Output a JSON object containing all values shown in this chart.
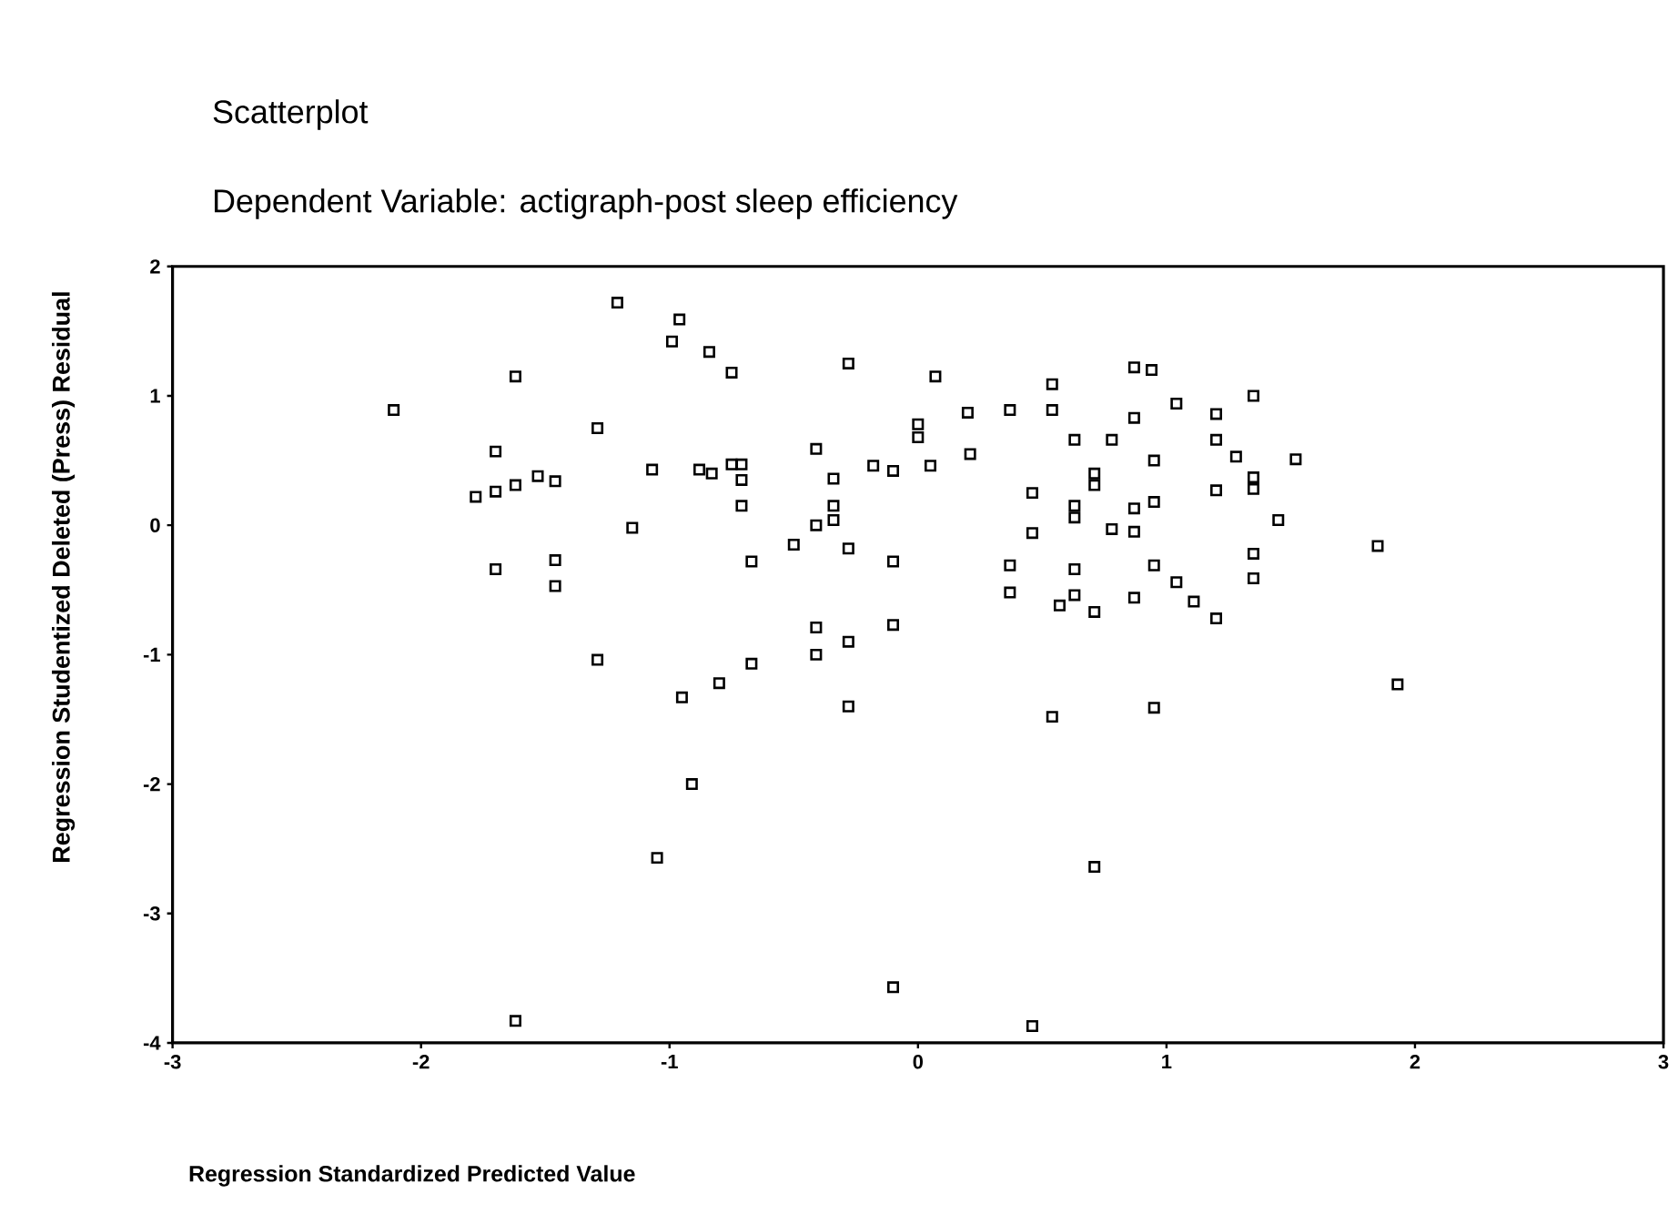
{
  "chart_data": {
    "type": "scatter",
    "title": "Scatterplot",
    "subtitle": "Dependent Variable: actigraph-post sleep efficiency",
    "xlabel": "Regression Standardized Predicted Value",
    "ylabel": "Regression Studentized Deleted (Press) Residual",
    "x": [
      -2.11,
      -1.62,
      -1.7,
      -1.78,
      -1.7,
      -1.62,
      -1.53,
      -1.46,
      -1.7,
      -1.46,
      -1.46,
      -1.62,
      -1.21,
      -0.96,
      -0.99,
      -0.84,
      -0.75,
      -0.28,
      0.07,
      0.54,
      -1.29,
      0.0,
      0.0,
      0.2,
      0.37,
      0.54,
      0.63,
      0.78,
      -1.07,
      -0.88,
      -0.83,
      -0.75,
      -0.71,
      -0.71,
      -0.41,
      -0.34,
      -0.18,
      -0.1,
      0.05,
      0.21,
      0.46,
      0.63,
      0.63,
      0.71,
      0.71,
      -1.15,
      -0.71,
      -0.34,
      -0.34,
      -0.41,
      -0.5,
      -0.28,
      0.46,
      0.78,
      -0.67,
      -0.1,
      0.37,
      0.37,
      0.63,
      0.63,
      0.57,
      0.71,
      -0.41,
      -0.41,
      -0.28,
      -0.1,
      -1.29,
      -0.67,
      -0.8,
      -0.95,
      -0.28,
      0.54,
      -0.91,
      -1.05,
      0.71,
      -0.1,
      0.46,
      0.87,
      0.94,
      1.04,
      1.2,
      1.35,
      0.87,
      1.2,
      1.28,
      1.52,
      0.95,
      1.35,
      1.35,
      1.2,
      0.95,
      0.87,
      1.45,
      0.87,
      1.85,
      1.35,
      1.35,
      0.95,
      1.04,
      1.11,
      1.2,
      0.87,
      1.93,
      0.95
    ],
    "values": [
      0.89,
      1.15,
      0.57,
      0.22,
      0.26,
      0.31,
      0.38,
      0.34,
      -0.34,
      -0.27,
      -0.47,
      -3.83,
      1.72,
      1.59,
      1.42,
      1.34,
      1.18,
      1.25,
      1.15,
      1.09,
      0.75,
      0.78,
      0.68,
      0.87,
      0.89,
      0.89,
      0.66,
      0.66,
      0.43,
      0.43,
      0.4,
      0.47,
      0.47,
      0.35,
      0.59,
      0.36,
      0.46,
      0.42,
      0.46,
      0.55,
      0.25,
      0.15,
      0.06,
      0.4,
      0.31,
      -0.02,
      0.15,
      0.15,
      0.04,
      0.0,
      -0.15,
      -0.18,
      -0.06,
      -0.03,
      -0.28,
      -0.28,
      -0.31,
      -0.52,
      -0.34,
      -0.54,
      -0.62,
      -0.67,
      -0.79,
      -1.0,
      -0.9,
      -0.77,
      -1.04,
      -1.07,
      -1.22,
      -1.33,
      -1.4,
      -1.48,
      -2.0,
      -2.57,
      -2.64,
      -3.57,
      -3.87,
      1.22,
      1.2,
      0.94,
      0.86,
      1.0,
      0.83,
      0.66,
      0.53,
      0.51,
      0.5,
      0.37,
      0.28,
      0.27,
      0.18,
      0.13,
      0.04,
      -0.05,
      -0.16,
      -0.22,
      -0.41,
      -0.31,
      -0.44,
      -0.59,
      -0.72,
      -0.56,
      -1.23,
      -1.41
    ],
    "color": "#000000",
    "marker": "square",
    "xlim": [
      -3,
      3
    ],
    "ylim": [
      -4,
      2
    ],
    "xticks": [
      -3,
      -2,
      -1,
      0,
      1,
      2,
      3
    ],
    "yticks": [
      -4,
      -3,
      -2,
      -1,
      0,
      1,
      2
    ]
  }
}
